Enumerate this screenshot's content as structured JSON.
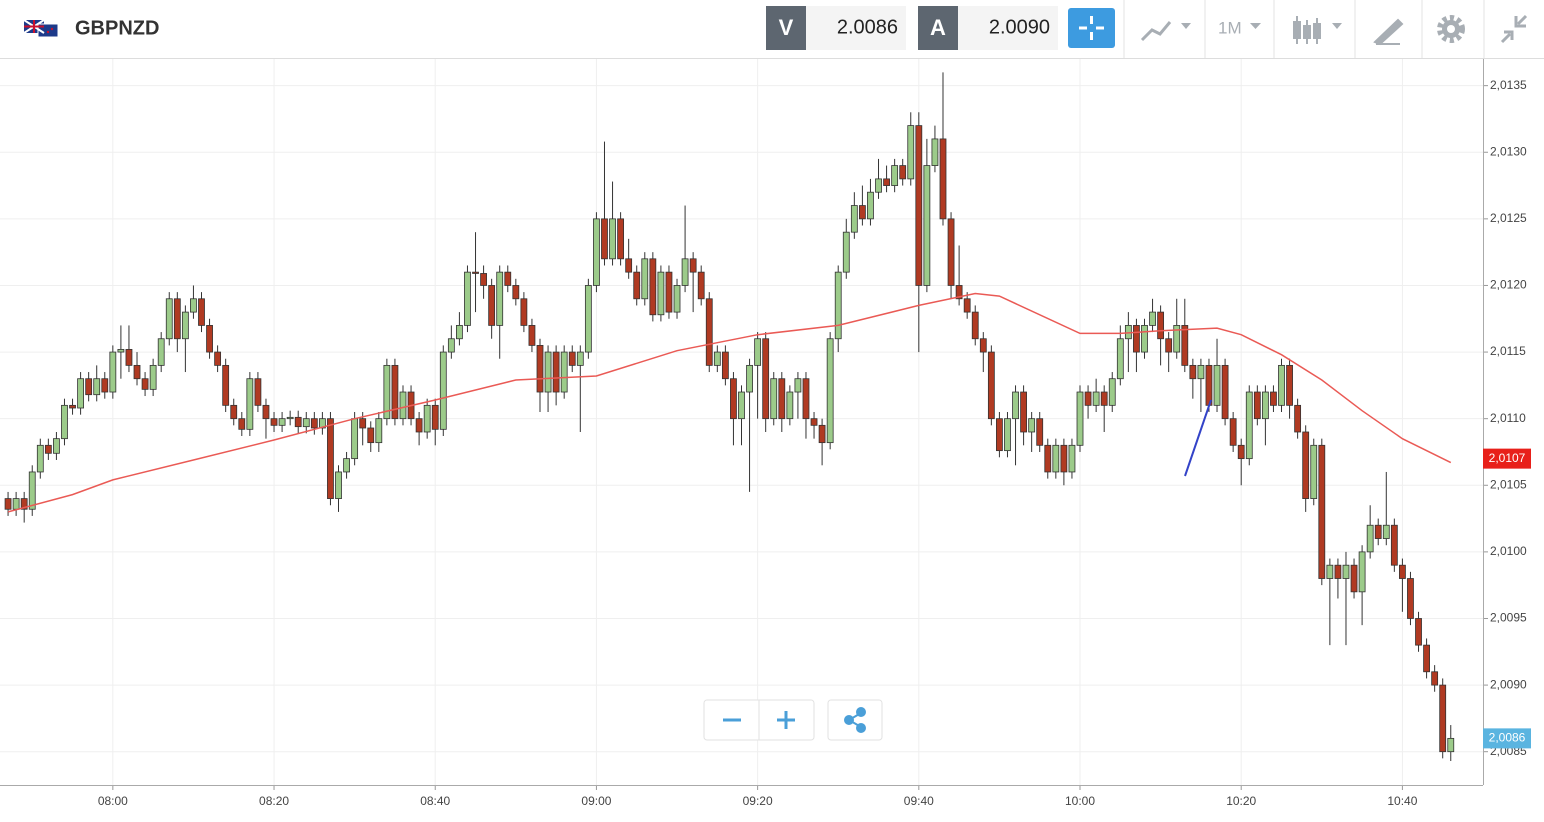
{
  "header": {
    "symbol": "GBPNZD",
    "bid_label": "V",
    "bid": "2.0086",
    "ask_label": "A",
    "ask": "2.0090",
    "timeframe": "1M"
  },
  "chart_data": {
    "type": "candlestick",
    "x": [
      "07:47",
      "07:48",
      "07:49",
      "07:50",
      "07:51",
      "07:52",
      "07:53",
      "07:54",
      "07:55",
      "07:56",
      "07:57",
      "07:58",
      "07:59",
      "08:00",
      "08:01",
      "08:02",
      "08:03",
      "08:04",
      "08:05",
      "08:06",
      "08:07",
      "08:08",
      "08:09",
      "08:10",
      "08:11",
      "08:12",
      "08:13",
      "08:14",
      "08:15",
      "08:16",
      "08:17",
      "08:18",
      "08:19",
      "08:20",
      "08:21",
      "08:22",
      "08:23",
      "08:24",
      "08:25",
      "08:26",
      "08:27",
      "08:28",
      "08:29",
      "08:30",
      "08:31",
      "08:32",
      "08:33",
      "08:34",
      "08:35",
      "08:36",
      "08:37",
      "08:38",
      "08:39",
      "08:40",
      "08:41",
      "08:42",
      "08:43",
      "08:44",
      "08:45",
      "08:46",
      "08:47",
      "08:48",
      "08:49",
      "08:50",
      "08:51",
      "08:52",
      "08:53",
      "08:54",
      "08:55",
      "08:56",
      "08:57",
      "08:58",
      "08:59",
      "09:00",
      "09:01",
      "09:02",
      "09:03",
      "09:04",
      "09:05",
      "09:06",
      "09:07",
      "09:08",
      "09:09",
      "09:10",
      "09:11",
      "09:12",
      "09:13",
      "09:14",
      "09:15",
      "09:16",
      "09:17",
      "09:18",
      "09:19",
      "09:20",
      "09:21",
      "09:22",
      "09:23",
      "09:24",
      "09:25",
      "09:26",
      "09:27",
      "09:28",
      "09:29",
      "09:30",
      "09:31",
      "09:32",
      "09:33",
      "09:34",
      "09:35",
      "09:36",
      "09:37",
      "09:38",
      "09:39",
      "09:40",
      "09:41",
      "09:42",
      "09:43",
      "09:44",
      "09:45",
      "09:46",
      "09:47",
      "09:48",
      "09:49",
      "09:50",
      "09:51",
      "09:52",
      "09:53",
      "09:54",
      "09:55",
      "09:56",
      "09:57",
      "09:58",
      "09:59",
      "10:00",
      "10:01",
      "10:02",
      "10:03",
      "10:04",
      "10:05",
      "10:06",
      "10:07",
      "10:08",
      "10:09",
      "10:10",
      "10:11",
      "10:12",
      "10:13",
      "10:14",
      "10:15",
      "10:16",
      "10:17",
      "10:18",
      "10:19",
      "10:20",
      "10:21",
      "10:22",
      "10:23",
      "10:24",
      "10:25",
      "10:26",
      "10:27",
      "10:28",
      "10:29",
      "10:30",
      "10:31",
      "10:32",
      "10:33",
      "10:34",
      "10:35",
      "10:36",
      "10:37",
      "10:38",
      "10:39",
      "10:40",
      "10:41",
      "10:42",
      "10:43",
      "10:44",
      "10:45",
      "10:46"
    ],
    "open": [
      2.0104,
      2.01032,
      2.0104,
      2.01032,
      2.0106,
      2.0108,
      2.01074,
      2.01085,
      2.0111,
      2.01108,
      2.0113,
      2.01118,
      2.0113,
      2.0112,
      2.0115,
      2.01152,
      2.0114,
      2.0113,
      2.01122,
      2.0114,
      2.0116,
      2.0119,
      2.0116,
      2.0118,
      2.0119,
      2.0117,
      2.0115,
      2.0114,
      2.0111,
      2.011,
      2.01092,
      2.0113,
      2.0111,
      2.011,
      2.01095,
      2.011,
      2.01101,
      2.01094,
      2.011,
      2.01093,
      2.011,
      2.0104,
      2.0106,
      2.0107,
      2.011,
      2.01093,
      2.01082,
      2.011,
      2.0114,
      2.011,
      2.0112,
      2.011,
      2.0109,
      2.0111,
      2.01092,
      2.0115,
      2.0116,
      2.0117,
      2.0121,
      2.01209,
      2.012,
      2.0117,
      2.0121,
      2.012,
      2.0119,
      2.0117,
      2.01155,
      2.0112,
      2.0115,
      2.0112,
      2.0115,
      2.0114,
      2.0115,
      2.012,
      2.0125,
      2.0122,
      2.0125,
      2.0122,
      2.0121,
      2.0119,
      2.0122,
      2.01178,
      2.0121,
      2.0118,
      2.012,
      2.0122,
      2.0121,
      2.0119,
      2.0114,
      2.0115,
      2.0113,
      2.011,
      2.0112,
      2.0114,
      2.0116,
      2.011,
      2.0113,
      2.011,
      2.0112,
      2.0113,
      2.011,
      2.01095,
      2.01082,
      2.0116,
      2.0121,
      2.0124,
      2.0126,
      2.0125,
      2.0127,
      2.0128,
      2.01275,
      2.0129,
      2.0128,
      2.0132,
      2.012,
      2.0129,
      2.0131,
      2.0125,
      2.012,
      2.0119,
      2.0118,
      2.0116,
      2.0115,
      2.011,
      2.01076,
      2.011,
      2.0112,
      2.0109,
      2.011,
      2.0108,
      2.0106,
      2.0108,
      2.0106,
      2.0108,
      2.0112,
      2.0111,
      2.0112,
      2.0111,
      2.0113,
      2.0116,
      2.0117,
      2.0115,
      2.0117,
      2.0118,
      2.0116,
      2.0115,
      2.0117,
      2.0114,
      2.0113,
      2.0114,
      2.0111,
      2.0114,
      2.011,
      2.0108,
      2.0107,
      2.0112,
      2.011,
      2.0112,
      2.0111,
      2.0114,
      2.0111,
      2.0109,
      2.0104,
      2.0108,
      2.0098,
      2.0099,
      2.0098,
      2.0099,
      2.0097,
      2.01,
      2.0102,
      2.0101,
      2.0102,
      2.0099,
      2.0098,
      2.0095,
      2.0093,
      2.0091,
      2.009,
      2.0085
    ],
    "high": [
      2.01045,
      2.01045,
      2.01045,
      2.01065,
      2.01085,
      2.01085,
      2.0109,
      2.01115,
      2.01115,
      2.01135,
      2.01135,
      2.0114,
      2.01135,
      2.01155,
      2.0117,
      2.0117,
      2.0115,
      2.01135,
      2.01145,
      2.01165,
      2.01195,
      2.01195,
      2.01185,
      2.012,
      2.01195,
      2.01175,
      2.01155,
      2.01145,
      2.01115,
      2.01105,
      2.01135,
      2.01135,
      2.01115,
      2.01105,
      2.01105,
      2.01106,
      2.01106,
      2.01105,
      2.01105,
      2.01105,
      2.01105,
      2.01065,
      2.01075,
      2.01105,
      2.01105,
      2.01098,
      2.01105,
      2.01145,
      2.01145,
      2.01125,
      2.01125,
      2.01105,
      2.01115,
      2.01115,
      2.01155,
      2.0117,
      2.0118,
      2.01215,
      2.0124,
      2.01215,
      2.01205,
      2.01215,
      2.01215,
      2.01205,
      2.01195,
      2.01175,
      2.0116,
      2.01155,
      2.01155,
      2.01155,
      2.01155,
      2.01155,
      2.01205,
      2.01255,
      2.01308,
      2.01278,
      2.01255,
      2.01235,
      2.01215,
      2.01225,
      2.01225,
      2.01215,
      2.01215,
      2.01205,
      2.0126,
      2.01225,
      2.01215,
      2.01195,
      2.01155,
      2.01155,
      2.01135,
      2.01125,
      2.01145,
      2.01165,
      2.01165,
      2.01135,
      2.01135,
      2.01125,
      2.01135,
      2.01135,
      2.01105,
      2.011,
      2.01165,
      2.01215,
      2.0125,
      2.0127,
      2.01275,
      2.0128,
      2.01295,
      2.0129,
      2.01295,
      2.01295,
      2.0133,
      2.0133,
      2.0131,
      2.0132,
      2.0136,
      2.01255,
      2.0123,
      2.01195,
      2.01185,
      2.01165,
      2.01155,
      2.01105,
      2.01105,
      2.01125,
      2.01125,
      2.01105,
      2.01105,
      2.01085,
      2.01085,
      2.01085,
      2.01085,
      2.01125,
      2.01125,
      2.0113,
      2.01125,
      2.01135,
      2.0117,
      2.0118,
      2.01175,
      2.01175,
      2.0119,
      2.01185,
      2.01165,
      2.0119,
      2.0119,
      2.01145,
      2.01145,
      2.01145,
      2.0116,
      2.01145,
      2.01105,
      2.01085,
      2.01125,
      2.01125,
      2.01125,
      2.01125,
      2.01145,
      2.01145,
      2.01115,
      2.01095,
      2.01085,
      2.01085,
      2.00995,
      2.00995,
      2.01,
      2.00995,
      2.01005,
      2.01035,
      2.01025,
      2.0106,
      2.01025,
      2.00995,
      2.00985,
      2.00955,
      2.00935,
      2.00915,
      2.00905,
      2.0087
    ],
    "low": [
      2.01027,
      2.01027,
      2.01022,
      2.01027,
      2.01055,
      2.01069,
      2.01069,
      2.0108,
      2.01103,
      2.01103,
      2.01113,
      2.01113,
      2.01115,
      2.01115,
      2.0113,
      2.01135,
      2.01125,
      2.01117,
      2.01117,
      2.01135,
      2.01155,
      2.0115,
      2.01135,
      2.01175,
      2.01165,
      2.01145,
      2.01135,
      2.01105,
      2.01095,
      2.01087,
      2.01087,
      2.01105,
      2.01085,
      2.0109,
      2.0109,
      2.01095,
      2.01089,
      2.01089,
      2.01088,
      2.01088,
      2.01035,
      2.0103,
      2.01055,
      2.01065,
      2.0108,
      2.01075,
      2.01075,
      2.01095,
      2.01095,
      2.01095,
      2.01095,
      2.0108,
      2.01085,
      2.0108,
      2.01087,
      2.01145,
      2.01155,
      2.01165,
      2.0118,
      2.0119,
      2.0116,
      2.01145,
      2.01195,
      2.01185,
      2.01165,
      2.0115,
      2.01105,
      2.01105,
      2.0111,
      2.01115,
      2.01135,
      2.0109,
      2.01145,
      2.01195,
      2.01215,
      2.01215,
      2.01215,
      2.01205,
      2.01185,
      2.01185,
      2.01173,
      2.01173,
      2.01175,
      2.01175,
      2.01195,
      2.0118,
      2.01185,
      2.01135,
      2.01135,
      2.01125,
      2.0108,
      2.0108,
      2.01045,
      2.011,
      2.0109,
      2.01095,
      2.0109,
      2.01095,
      2.011,
      2.01085,
      2.01085,
      2.01065,
      2.01077,
      2.0115,
      2.01205,
      2.01235,
      2.01245,
      2.01245,
      2.01265,
      2.0127,
      2.0127,
      2.01275,
      2.01275,
      2.0115,
      2.01195,
      2.01285,
      2.01245,
      2.0119,
      2.01185,
      2.01175,
      2.01155,
      2.01135,
      2.01095,
      2.01071,
      2.01071,
      2.01065,
      2.0108,
      2.01075,
      2.01075,
      2.01055,
      2.01055,
      2.0105,
      2.01055,
      2.01075,
      2.011,
      2.01105,
      2.0109,
      2.01105,
      2.01125,
      2.01135,
      2.01135,
      2.01145,
      2.01165,
      2.0114,
      2.01135,
      2.01145,
      2.01135,
      2.01115,
      2.01105,
      2.01105,
      2.01105,
      2.01095,
      2.01075,
      2.0105,
      2.01065,
      2.01095,
      2.0108,
      2.01105,
      2.01105,
      2.011,
      2.01085,
      2.0103,
      2.01035,
      2.00975,
      2.0093,
      2.00965,
      2.0093,
      2.00965,
      2.00945,
      2.00995,
      2.01005,
      2.01005,
      2.00985,
      2.00955,
      2.00945,
      2.00925,
      2.00905,
      2.00895,
      2.00845,
      2.00843
    ],
    "close": [
      2.01032,
      2.0104,
      2.01032,
      2.0106,
      2.0108,
      2.01074,
      2.01085,
      2.0111,
      2.01108,
      2.0113,
      2.01118,
      2.0113,
      2.0112,
      2.0115,
      2.01152,
      2.0114,
      2.0113,
      2.01122,
      2.0114,
      2.0116,
      2.0119,
      2.0116,
      2.0118,
      2.0119,
      2.0117,
      2.0115,
      2.0114,
      2.0111,
      2.011,
      2.01092,
      2.0113,
      2.0111,
      2.011,
      2.01095,
      2.011,
      2.01101,
      2.01094,
      2.011,
      2.01093,
      2.011,
      2.0104,
      2.0106,
      2.0107,
      2.011,
      2.01093,
      2.01082,
      2.011,
      2.0114,
      2.011,
      2.0112,
      2.011,
      2.0109,
      2.0111,
      2.01092,
      2.0115,
      2.0116,
      2.0117,
      2.0121,
      2.01209,
      2.012,
      2.0117,
      2.0121,
      2.012,
      2.0119,
      2.0117,
      2.01155,
      2.0112,
      2.0115,
      2.0112,
      2.0115,
      2.0114,
      2.0115,
      2.012,
      2.0125,
      2.0122,
      2.0125,
      2.0122,
      2.0121,
      2.0119,
      2.0122,
      2.01178,
      2.0121,
      2.0118,
      2.012,
      2.0122,
      2.0121,
      2.0119,
      2.0114,
      2.0115,
      2.0113,
      2.011,
      2.0112,
      2.0114,
      2.0116,
      2.011,
      2.0113,
      2.011,
      2.0112,
      2.0113,
      2.011,
      2.01095,
      2.01082,
      2.0116,
      2.0121,
      2.0124,
      2.0126,
      2.0125,
      2.0127,
      2.0128,
      2.01275,
      2.0129,
      2.0128,
      2.0132,
      2.012,
      2.0129,
      2.0131,
      2.0125,
      2.012,
      2.0119,
      2.0118,
      2.0116,
      2.0115,
      2.011,
      2.01076,
      2.011,
      2.0112,
      2.0109,
      2.011,
      2.0108,
      2.0106,
      2.0108,
      2.0106,
      2.0108,
      2.0112,
      2.0111,
      2.0112,
      2.0111,
      2.0113,
      2.0116,
      2.0117,
      2.0115,
      2.0117,
      2.0118,
      2.0116,
      2.0115,
      2.0117,
      2.0114,
      2.0113,
      2.0114,
      2.0111,
      2.0114,
      2.011,
      2.0108,
      2.0107,
      2.0112,
      2.011,
      2.0112,
      2.0111,
      2.0114,
      2.0111,
      2.0109,
      2.0104,
      2.0108,
      2.0098,
      2.0099,
      2.0098,
      2.0099,
      2.0097,
      2.01,
      2.0102,
      2.0101,
      2.0102,
      2.0099,
      2.0098,
      2.0095,
      2.0093,
      2.0091,
      2.009,
      2.0085,
      2.0086
    ],
    "up_color": "#9ccb8a",
    "down_color": "#b03a22",
    "ma": {
      "color": "#ea5a55",
      "x": [
        "07:47",
        "07:55",
        "08:00",
        "08:10",
        "08:20",
        "08:30",
        "08:40",
        "08:50",
        "09:00",
        "09:10",
        "09:20",
        "09:30",
        "09:40",
        "09:47",
        "09:50",
        "10:00",
        "10:05",
        "10:10",
        "10:17",
        "10:20",
        "10:25",
        "10:30",
        "10:35",
        "10:40",
        "10:46"
      ],
      "values": [
        2.0103,
        2.01043,
        2.01054,
        2.01069,
        2.01084,
        2.011,
        2.01114,
        2.01129,
        2.01132,
        2.01151,
        2.01163,
        2.0117,
        2.01185,
        2.01194,
        2.01192,
        2.01164,
        2.01164,
        2.01166,
        2.01168,
        2.01163,
        2.01148,
        2.01129,
        2.01106,
        2.01085,
        2.01067
      ]
    },
    "ma_tag": {
      "value": 2.0107,
      "label": "2,0107"
    },
    "last_tag": {
      "value": 2.0086,
      "label": "2,0086"
    },
    "xlim": [
      "07:46",
      "10:50"
    ],
    "xticks": [
      "08:00",
      "08:20",
      "08:40",
      "09:00",
      "09:20",
      "09:40",
      "10:00",
      "10:20",
      "10:40"
    ],
    "ylim": [
      2.00825,
      2.0137
    ],
    "yticks": [
      {
        "value": 2.0085,
        "label": "2,0085"
      },
      {
        "value": 2.009,
        "label": "2,0090"
      },
      {
        "value": 2.0095,
        "label": "2,0095"
      },
      {
        "value": 2.01,
        "label": "2,0100"
      },
      {
        "value": 2.0105,
        "label": "2,0105"
      },
      {
        "value": 2.011,
        "label": "2,0110"
      },
      {
        "value": 2.0115,
        "label": "2,0115"
      },
      {
        "value": 2.012,
        "label": "2,0120"
      },
      {
        "value": 2.0125,
        "label": "2,0125"
      },
      {
        "value": 2.013,
        "label": "2,0130"
      },
      {
        "value": 2.0135,
        "label": "2,0135"
      }
    ],
    "grid": true
  }
}
